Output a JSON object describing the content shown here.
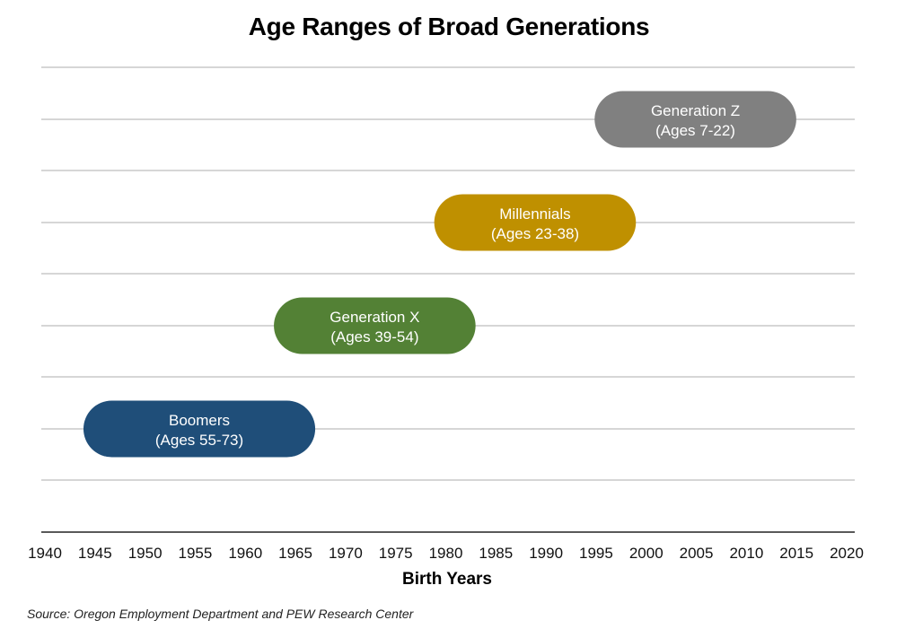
{
  "chart_data": {
    "type": "bar",
    "title": "Age Ranges of Broad Generations",
    "xlabel": "Birth Years",
    "xlim": [
      1940,
      2020
    ],
    "xticks": [
      1940,
      1945,
      1950,
      1955,
      1960,
      1965,
      1970,
      1975,
      1980,
      1985,
      1990,
      1995,
      2000,
      2005,
      2010,
      2015,
      2020
    ],
    "grid": true,
    "series": [
      {
        "name": "Boomers",
        "range_label": "(Ages 55-73)",
        "start": 1946,
        "end": 1964,
        "color": "#1f4e79"
      },
      {
        "name": "Generation X",
        "range_label": "(Ages 39-54)",
        "start": 1965,
        "end": 1980,
        "color": "#538135"
      },
      {
        "name": "Millennials",
        "range_label": "(Ages 23-38)",
        "start": 1981,
        "end": 1996,
        "color": "#bf9000"
      },
      {
        "name": "Generation Z",
        "range_label": "(Ages 7-22)",
        "start": 1997,
        "end": 2012,
        "color": "#808080"
      }
    ]
  },
  "source": "Source: Oregon Employment Department and PEW Research Center"
}
